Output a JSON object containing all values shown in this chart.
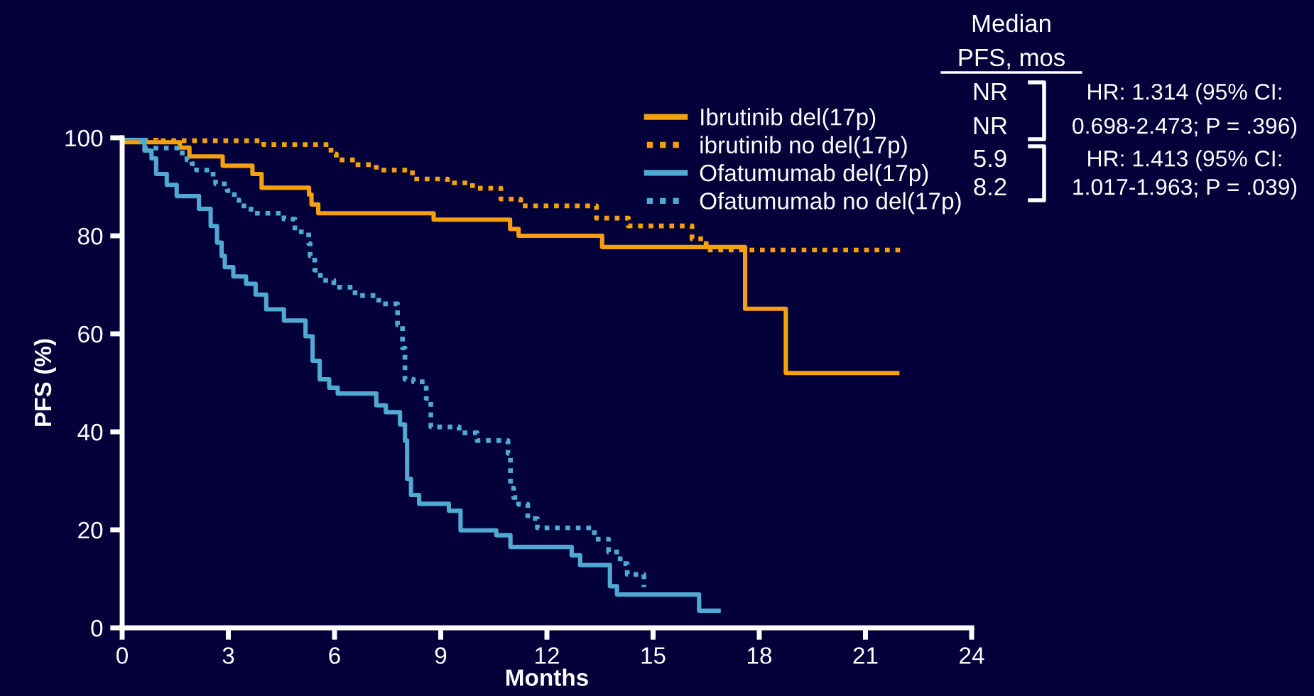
{
  "chart_data": {
    "type": "step",
    "xlabel": "Months",
    "ylabel": "PFS (%)",
    "xlim": [
      0,
      24
    ],
    "xticks": [
      0,
      3,
      6,
      9,
      12,
      15,
      18,
      21,
      24
    ],
    "ylim": [
      0,
      100
    ],
    "yticks": [
      0,
      20,
      40,
      60,
      80,
      100
    ],
    "grid": false,
    "legend": "top right",
    "marker": "none",
    "series": [
      {
        "name": "Ibrutinib del(17p)",
        "color": "#f5a00f",
        "line_style": "solid",
        "x": [
          0,
          1.63,
          1.9,
          2.84,
          3.68,
          3.94,
          5.28,
          5.35,
          5.54,
          8.8,
          10.96,
          11.2,
          13.56,
          17.6,
          18.75,
          21.9
        ],
        "values": [
          99.1,
          98,
          96.2,
          94.3,
          92.6,
          89.8,
          88.4,
          86.4,
          84.6,
          83.3,
          81.4,
          80,
          77.7,
          65.1,
          52,
          52
        ]
      },
      {
        "name": "ibrutinib no del(17p)",
        "color": "#f5a00f",
        "line_style": "dotted",
        "x": [
          0,
          0.96,
          4.0,
          5.9,
          6.05,
          6.58,
          7.18,
          8.2,
          9.19,
          9.9,
          10.7,
          11.26,
          13.4,
          14.3,
          16.1,
          16.5,
          22.1
        ],
        "values": [
          100,
          99.4,
          98.6,
          96.7,
          95.5,
          94.5,
          93.4,
          91.6,
          90.8,
          89.7,
          87.5,
          86.1,
          83.6,
          82,
          79.4,
          77.1,
          77.1
        ]
      },
      {
        "name": "Ofatumumab del(17p)",
        "color": "#4fa9d0",
        "line_style": "solid",
        "x": [
          0,
          0.63,
          0.83,
          0.96,
          1.26,
          1.54,
          2.17,
          2.5,
          2.68,
          2.81,
          2.9,
          3.14,
          3.5,
          3.77,
          4.07,
          4.57,
          5.18,
          5.38,
          5.58,
          5.85,
          6.09,
          7.18,
          7.45,
          7.85,
          7.99,
          8.05,
          8.16,
          8.39,
          9.23,
          9.56,
          10.57,
          10.97,
          12.7,
          12.94,
          13.78,
          13.98,
          16.3,
          16.85
        ],
        "values": [
          100,
          97.4,
          95.8,
          92.6,
          90.4,
          88.1,
          85.5,
          82,
          78.6,
          75.9,
          73.6,
          71.7,
          70.2,
          68,
          65,
          62.7,
          59.5,
          54.5,
          50.7,
          49,
          47.8,
          45.4,
          44,
          41.5,
          38.2,
          30.4,
          27.1,
          25.3,
          23.9,
          19.9,
          18.9,
          16.5,
          14.8,
          12.8,
          8.5,
          6.8,
          3.5,
          3.5
        ]
      },
      {
        "name": "Ofatumumab no del(17p)",
        "color": "#4fa9d0",
        "line_style": "dotted",
        "x": [
          0,
          0.56,
          1.63,
          1.83,
          1.97,
          2.1,
          2.57,
          2.64,
          2.97,
          3.17,
          3.3,
          3.64,
          4.57,
          4.88,
          5.27,
          5.31,
          5.44,
          5.6,
          5.98,
          6.58,
          7.25,
          7.78,
          7.92,
          7.99,
          8.23,
          8.59,
          8.72,
          9.52,
          10.03,
          10.9,
          10.97,
          11.06,
          11.2,
          11.46,
          11.73,
          13.34,
          13.74,
          14.07,
          14.27,
          14.74
        ],
        "values": [
          100,
          97.9,
          96.9,
          95.5,
          94.7,
          93.4,
          91.8,
          90.6,
          89.2,
          87.3,
          86.1,
          84.6,
          83.4,
          80.8,
          78.4,
          75.9,
          73,
          70.9,
          69.5,
          67.8,
          66.1,
          61.8,
          57.1,
          50.7,
          50.2,
          46.8,
          41,
          39.8,
          38.2,
          35.6,
          28.5,
          26.6,
          25.2,
          22.3,
          20.4,
          18.1,
          15.5,
          13.1,
          10.9,
          8.3
        ]
      }
    ],
    "annotations": [
      "Median",
      "PFS, mos",
      "NR",
      "NR",
      "5.9",
      "8.2",
      "HR: 1.314 (95% CI:",
      "0.698-2.473; P = .396)",
      "HR: 1.413 (95% CI:",
      "1.017-1.963; P = .039)"
    ]
  }
}
